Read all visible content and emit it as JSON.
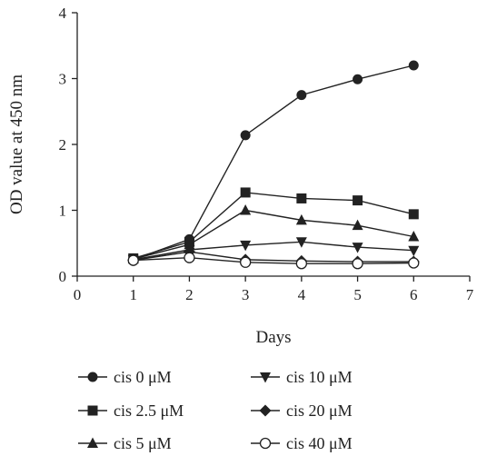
{
  "chart_data": {
    "type": "line",
    "xlabel": "Days",
    "ylabel": "OD value at 450 nm",
    "xlim": [
      0,
      7
    ],
    "ylim": [
      0,
      4
    ],
    "xticks": [
      "0",
      "1",
      "2",
      "3",
      "4",
      "5",
      "6",
      "7"
    ],
    "yticks": [
      "0",
      "1",
      "2",
      "3",
      "4"
    ],
    "grid": false,
    "legend_position": "bottom",
    "x": [
      1,
      2,
      3,
      4,
      5,
      6
    ],
    "series": [
      {
        "name": "cis 0 μM",
        "marker": "circle-filled",
        "values": [
          0.25,
          0.56,
          2.14,
          2.75,
          2.99,
          3.2
        ]
      },
      {
        "name": "cis 2.5 μM",
        "marker": "square-filled",
        "values": [
          0.27,
          0.52,
          1.27,
          1.18,
          1.15,
          0.94
        ]
      },
      {
        "name": "cis 5 μM",
        "marker": "triangle-up-filled",
        "values": [
          0.26,
          0.48,
          1.0,
          0.85,
          0.77,
          0.6
        ]
      },
      {
        "name": "cis 10 μM",
        "marker": "triangle-down-filled",
        "values": [
          0.25,
          0.4,
          0.47,
          0.52,
          0.44,
          0.39
        ]
      },
      {
        "name": "cis 20 μM",
        "marker": "diamond-filled",
        "values": [
          0.24,
          0.37,
          0.25,
          0.23,
          0.22,
          0.22
        ]
      },
      {
        "name": "cis 40 μM",
        "marker": "circle-open",
        "values": [
          0.24,
          0.28,
          0.21,
          0.19,
          0.19,
          0.2
        ]
      }
    ]
  }
}
